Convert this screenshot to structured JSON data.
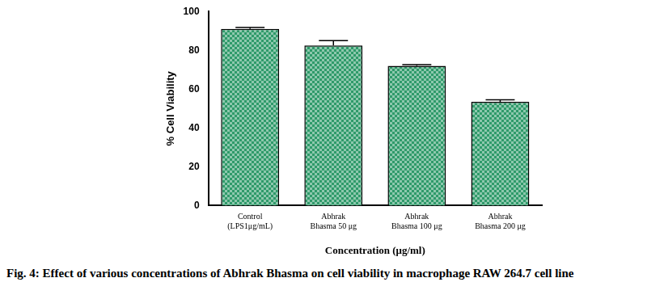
{
  "chart_data": {
    "type": "bar",
    "caption": "Fig. 4: Effect of various concentrations of Abhrak Bhasma on cell viability in macrophage RAW 264.7 cell line",
    "x_label": "Concentration (μg/ml)",
    "y_label": "% Cell Viability",
    "categories": [
      [
        "Control",
        "(LPS1μg/mL)"
      ],
      [
        "Abhrak",
        "Bhasma 50 μg"
      ],
      [
        "Abhrak",
        "Bhasma 100 μg"
      ],
      [
        "Abhrak",
        "Bhasma 200 μg"
      ]
    ],
    "values": [
      91,
      82.5,
      72,
      53.5
    ],
    "errors": [
      0.8,
      2.5,
      0.6,
      1.0
    ],
    "color": "#2f9a6a",
    "ylim": [
      0,
      100
    ],
    "yticks": [
      0,
      20,
      40,
      60,
      80,
      100
    ],
    "grid": false
  }
}
